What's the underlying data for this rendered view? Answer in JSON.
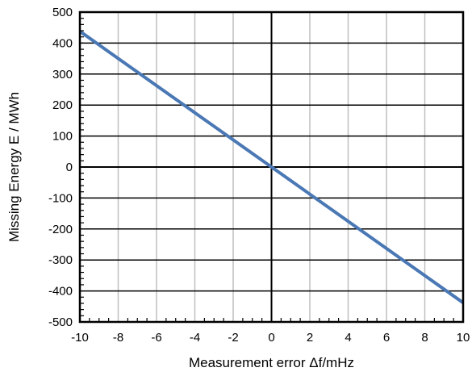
{
  "chart_data": {
    "type": "line",
    "xlabel": "Measurement error Δf/mHz",
    "ylabel": "Missing Energy E / MWh",
    "xlim": [
      -10,
      10
    ],
    "ylim": [
      -500,
      500
    ],
    "x_ticks": [
      -10,
      -8,
      -6,
      -4,
      -2,
      0,
      2,
      4,
      6,
      8,
      10
    ],
    "y_ticks": [
      500,
      400,
      300,
      200,
      100,
      0,
      -100,
      -200,
      -300,
      -400,
      -500
    ],
    "grid": true,
    "legend": "none",
    "series": [
      {
        "color": "#4a78b5",
        "x": [
          -10,
          10
        ],
        "y": [
          438,
          -438
        ]
      }
    ]
  }
}
